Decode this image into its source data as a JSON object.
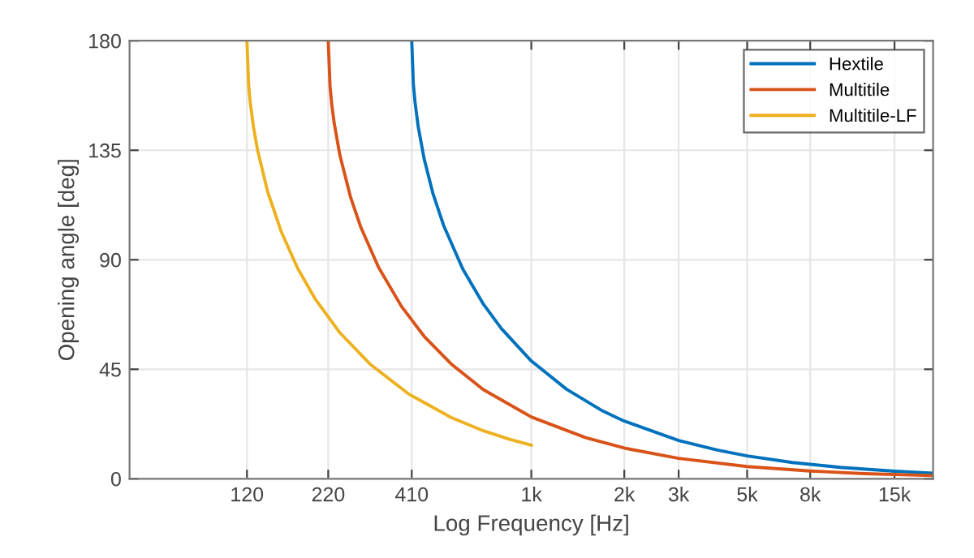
{
  "chart_data": {
    "type": "line",
    "xlabel": "Log Frequency [Hz]",
    "ylabel": "Opening angle [deg]",
    "log": "x",
    "grid": true,
    "legend": "top right",
    "marker": "none",
    "line_style": "solid",
    "xlim": [
      50,
      20000
    ],
    "xticks": [
      120,
      220,
      410,
      {
        "value": 1000,
        "label": "1k"
      },
      {
        "value": 2000,
        "label": "2k"
      },
      {
        "value": 3000,
        "label": "3k"
      },
      {
        "value": 5000,
        "label": "5k"
      },
      {
        "value": 8000,
        "label": "8k"
      },
      {
        "value": 15000,
        "label": "15k"
      }
    ],
    "ylim": [
      0,
      180
    ],
    "yticks": [
      0,
      45,
      90,
      135,
      180
    ],
    "series": [
      {
        "name": "Hextile",
        "color": "#0072bd",
        "x": [
          410,
          415,
          420,
          430,
          450,
          480,
          520,
          600,
          700,
          800,
          1000,
          1300,
          1700,
          2000,
          3000,
          4000,
          5000,
          7000,
          10000,
          15000,
          20000
        ],
        "values": [
          180,
          162.2,
          155.0,
          144.9,
          131.3,
          117.3,
          104.1,
          86.2,
          71.7,
          61.7,
          48.4,
          36.8,
          27.9,
          23.7,
          15.7,
          11.8,
          9.4,
          6.7,
          4.7,
          3.1,
          2.3
        ]
      },
      {
        "name": "Multitile",
        "color": "#d95319",
        "x": [
          220,
          223,
          226,
          230,
          240,
          260,
          280,
          320,
          380,
          450,
          550,
          700,
          1000,
          1500,
          2000,
          3000,
          5000,
          8000,
          12000,
          20000
        ],
        "values": [
          180,
          161.2,
          153.5,
          146.1,
          132.9,
          115.6,
          103.6,
          86.9,
          70.8,
          58.5,
          47.2,
          36.6,
          25.4,
          16.9,
          12.6,
          8.4,
          5.0,
          3.2,
          2.1,
          1.3
        ]
      },
      {
        "name": "Multitile-LF",
        "color": "#edb120",
        "x": [
          120,
          121.5,
          123,
          126,
          130,
          140,
          155,
          175,
          200,
          240,
          300,
          400,
          550,
          700,
          850,
          1000
        ],
        "values": [
          180,
          162.0,
          154.6,
          144.5,
          134.8,
          118.0,
          101.5,
          86.6,
          73.7,
          60.0,
          47.2,
          34.9,
          25.2,
          19.7,
          16.2,
          13.8
        ]
      }
    ]
  }
}
